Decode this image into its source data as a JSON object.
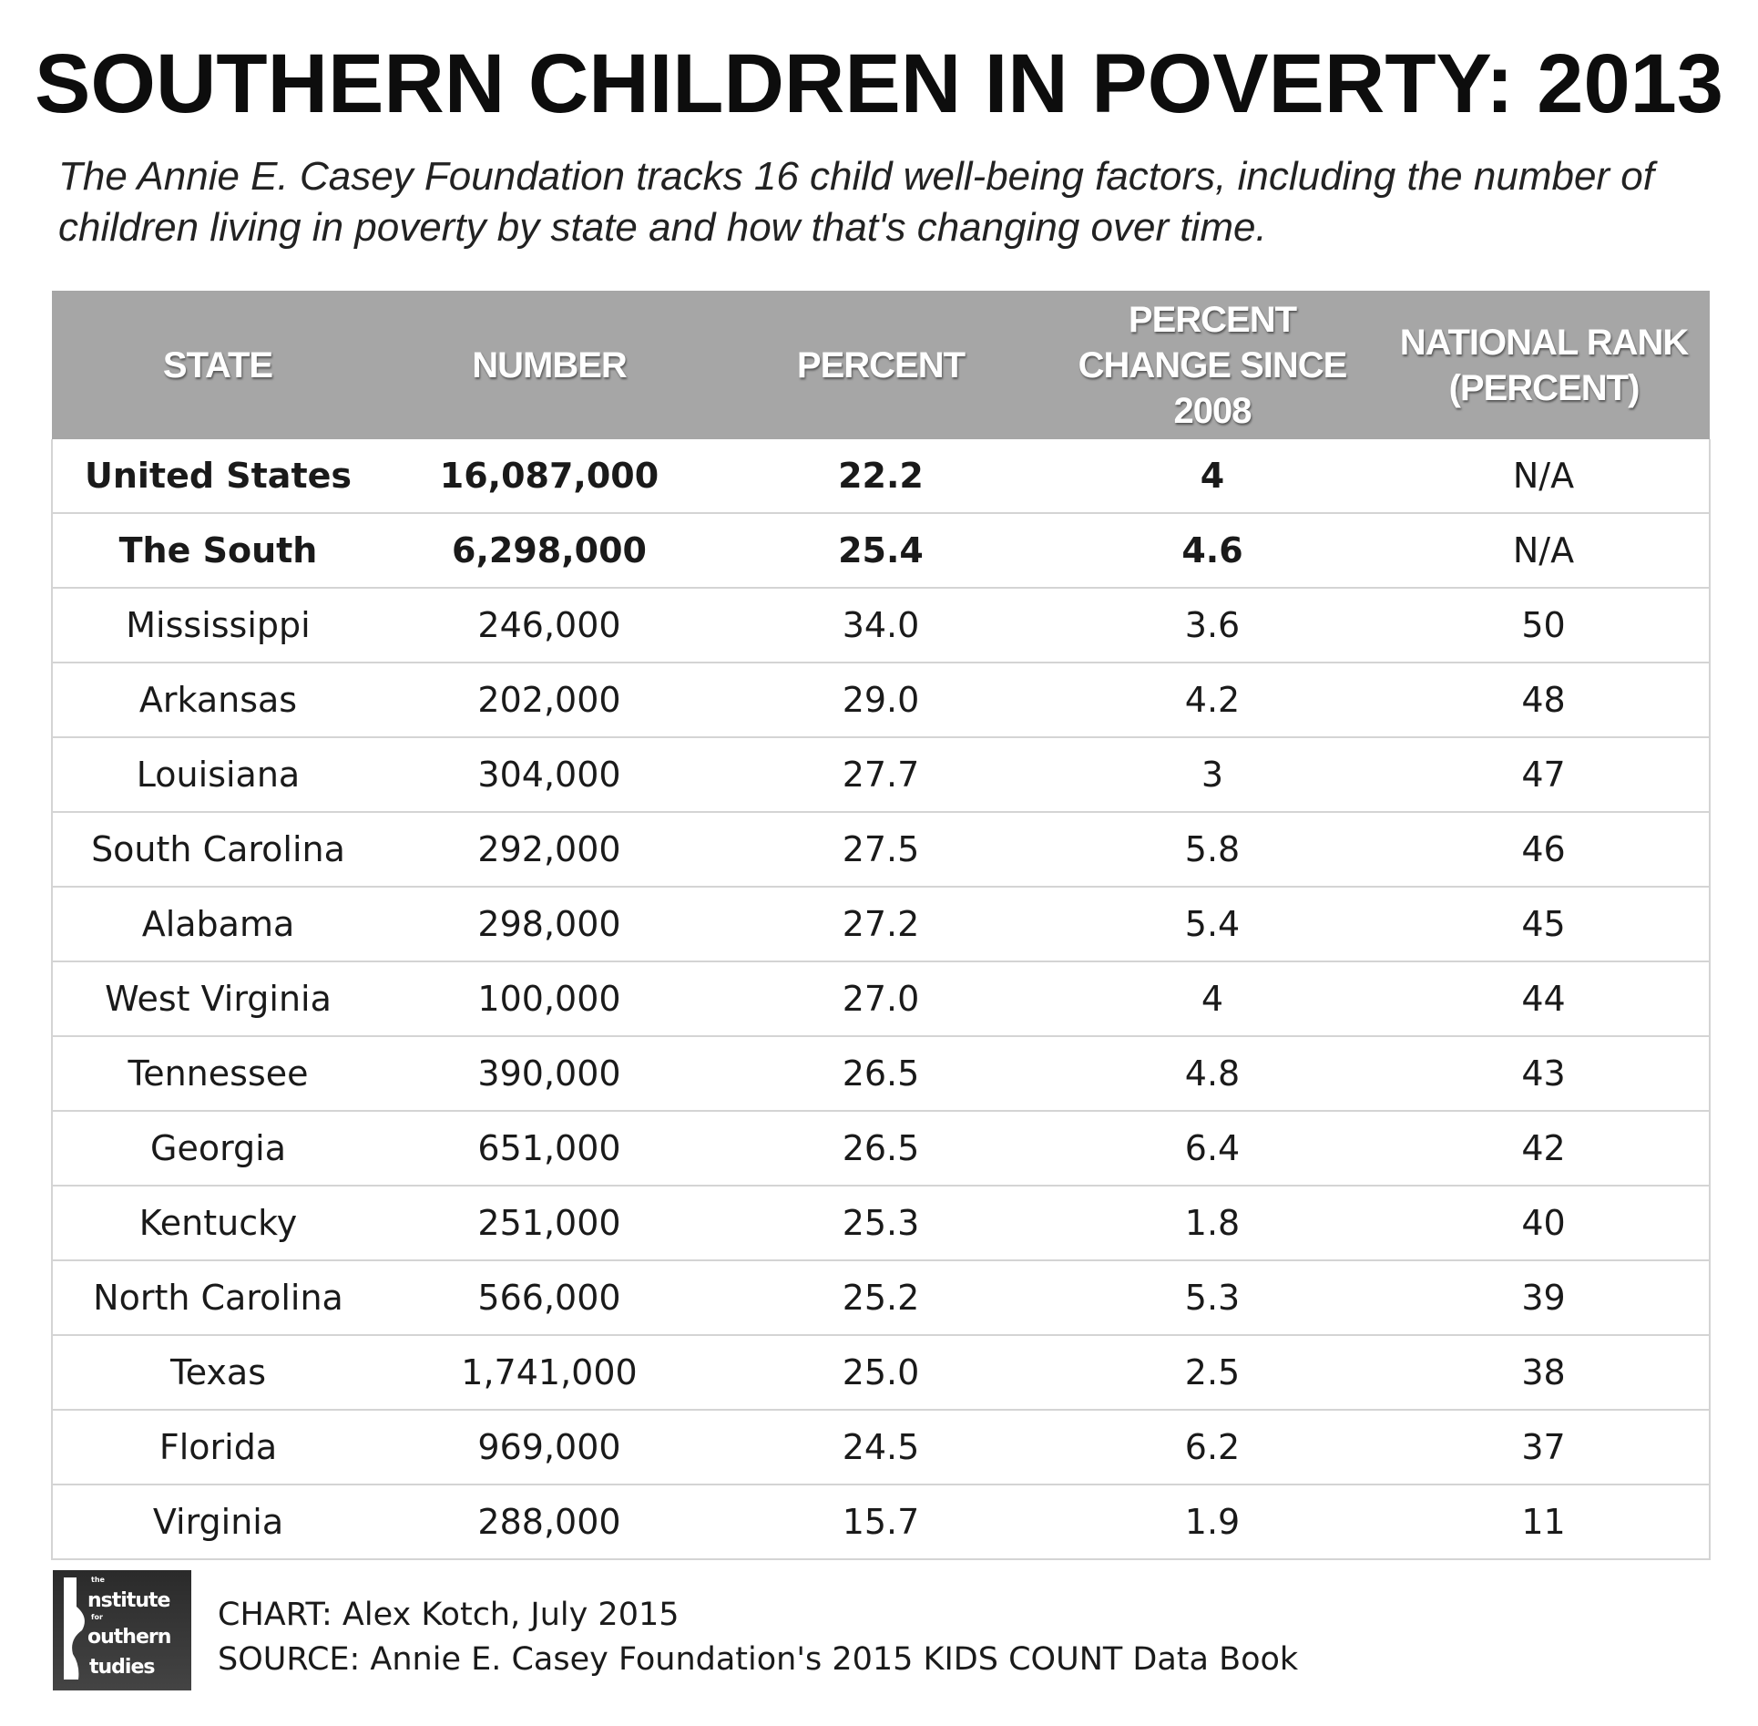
{
  "title": "SOUTHERN CHILDREN IN POVERTY: 2013",
  "subtitle": "The Annie E. Casey Foundation tracks 16 child well-being factors, including the number of children living in poverty by state and how that's changing over time.",
  "chart_data": {
    "type": "table",
    "columns": [
      "STATE",
      "NUMBER",
      "PERCENT",
      "PERCENT CHANGE SINCE 2008",
      "NATIONAL RANK (PERCENT)"
    ],
    "rows": [
      [
        "United States",
        "16,087,000",
        "22.2",
        "4",
        "N/A"
      ],
      [
        "The South",
        "6,298,000",
        "25.4",
        "4.6",
        "N/A"
      ],
      [
        "Mississippi",
        "246,000",
        "34.0",
        "3.6",
        "50"
      ],
      [
        "Arkansas",
        "202,000",
        "29.0",
        "4.2",
        "48"
      ],
      [
        "Louisiana",
        "304,000",
        "27.7",
        "3",
        "47"
      ],
      [
        "South Carolina",
        "292,000",
        "27.5",
        "5.8",
        "46"
      ],
      [
        "Alabama",
        "298,000",
        "27.2",
        "5.4",
        "45"
      ],
      [
        "West Virginia",
        "100,000",
        "27.0",
        "4",
        "44"
      ],
      [
        "Tennessee",
        "390,000",
        "26.5",
        "4.8",
        "43"
      ],
      [
        "Georgia",
        "651,000",
        "26.5",
        "6.4",
        "42"
      ],
      [
        "Kentucky",
        "251,000",
        "25.3",
        "1.8",
        "40"
      ],
      [
        "North Carolina",
        "566,000",
        "25.2",
        "5.3",
        "39"
      ],
      [
        "Texas",
        "1,741,000",
        "25.0",
        "2.5",
        "38"
      ],
      [
        "Florida",
        "969,000",
        "24.5",
        "6.2",
        "37"
      ],
      [
        "Virginia",
        "288,000",
        "15.7",
        "1.9",
        "11"
      ]
    ],
    "bold_rows": [
      "United States",
      "The South"
    ]
  },
  "colors": {
    "header_bg": "#a6a6a6",
    "header_text": "#ffffff",
    "row_border": "#d4d4d4"
  },
  "logo": {
    "text": "the Institute for Southern Studies"
  },
  "footer": {
    "chart_credit": "CHART: Alex Kotch, July 2015",
    "source": "SOURCE: Annie E. Casey Foundation's 2015 KIDS COUNT Data Book"
  }
}
